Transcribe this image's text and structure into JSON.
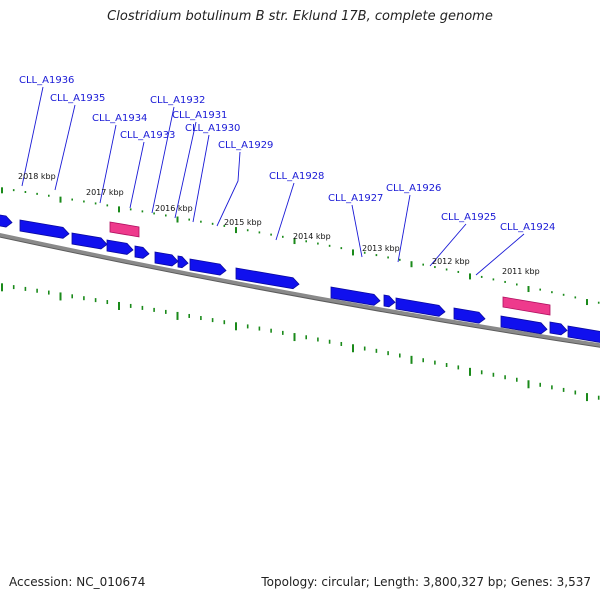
{
  "title": "Clostridium botulinum B str. Eklund 17B, complete genome",
  "footer": {
    "accession": "Accession: NC_010674",
    "summary": "Topology: circular; Length: 3,800,327 bp; Genes: 3,537"
  },
  "colors": {
    "gene_forward": "#1010ee",
    "gene_highlight": "#ee3a8c",
    "backbone": "#777777",
    "tick": "#1a8a1a",
    "label": "#1a1ad6"
  },
  "kbp_marks": [
    "2018 kbp",
    "2017 kbp",
    "2016 kbp",
    "2015 kbp",
    "2014 kbp",
    "2013 kbp",
    "2012 kbp",
    "2011 kbp"
  ],
  "gene_labels": [
    "CLL_A1936",
    "CLL_A1935",
    "CLL_A1934",
    "CLL_A1933",
    "CLL_A1932",
    "CLL_A1931",
    "CLL_A1930",
    "CLL_A1929",
    "CLL_A1928",
    "CLL_A1927",
    "CLL_A1926",
    "CLL_A1925",
    "CLL_A1924"
  ]
}
